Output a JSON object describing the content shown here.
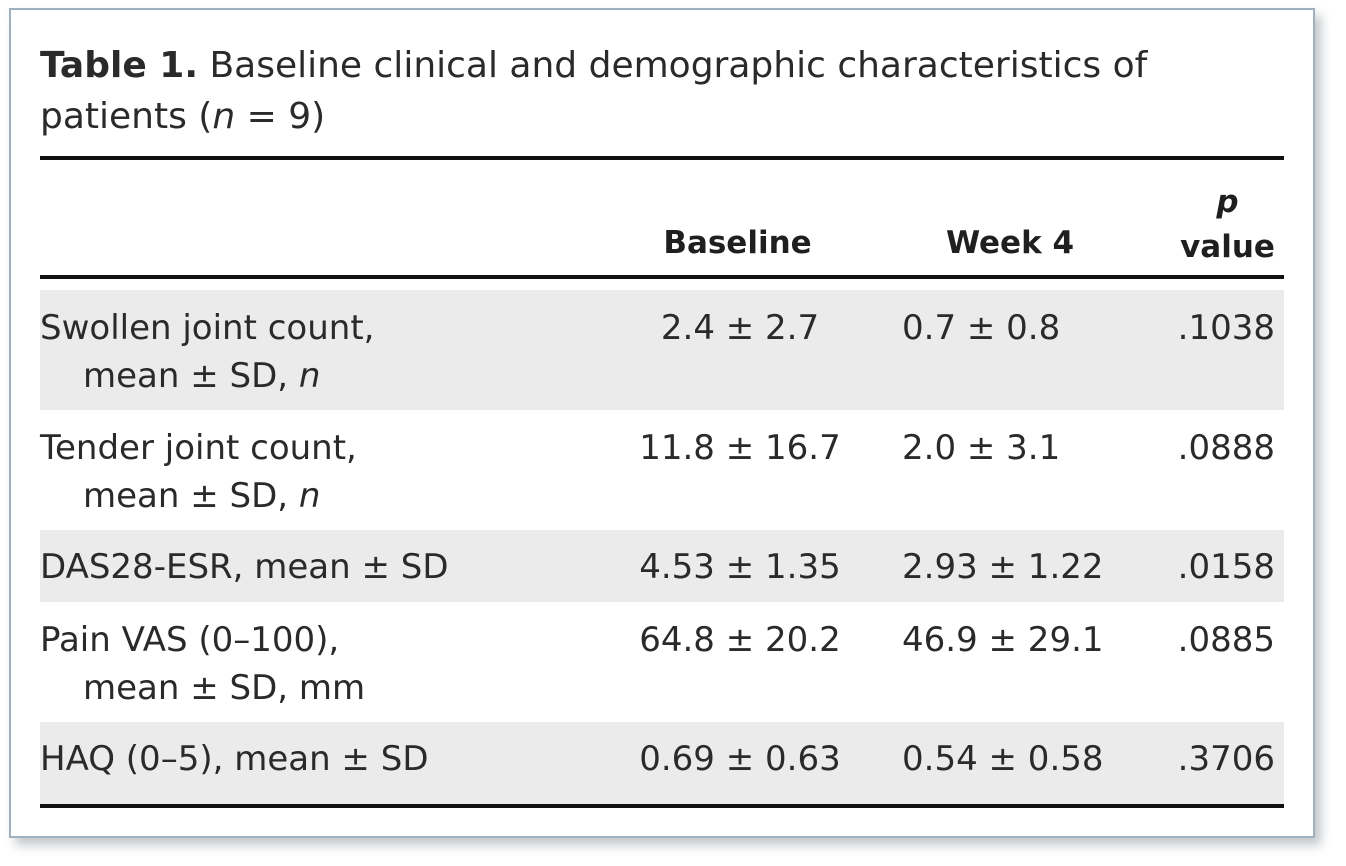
{
  "caption": {
    "label": "Table 1.",
    "text_before_n": " Baseline clinical and demographic characteristics of patients (",
    "n_symbol": "n",
    "text_after_n": " = 9)"
  },
  "header": {
    "col_baseline": "Baseline",
    "col_week4": "Week 4",
    "col_p_line1": "p",
    "col_p_line2": "value"
  },
  "rows": [
    {
      "label_line1": "Swollen joint count,",
      "label_line2_text": "mean ± SD, ",
      "label_line2_italic": "n",
      "baseline": "2.4 ± 2.7",
      "week4": "0.7 ± 0.8",
      "p": ".1038"
    },
    {
      "label_line1": "Tender joint count,",
      "label_line2_text": "mean ± SD, ",
      "label_line2_italic": "n",
      "baseline": "11.8 ± 16.7",
      "week4": "2.0 ± 3.1",
      "p": ".0888"
    },
    {
      "label_line1": "DAS28-ESR, mean ± SD",
      "baseline": "4.53 ± 1.35",
      "week4": "2.93 ± 1.22",
      "p": ".0158"
    },
    {
      "label_line1": "Pain VAS (0–100),",
      "label_line2_text": "mean ± SD, mm",
      "baseline": "64.8 ± 20.2",
      "week4": "46.9 ± 29.1",
      "p": ".0885"
    },
    {
      "label_line1": "HAQ (0–5), mean ± SD",
      "baseline": "0.69 ± 0.63",
      "week4": "0.54 ± 0.58",
      "p": ".3706"
    }
  ]
}
